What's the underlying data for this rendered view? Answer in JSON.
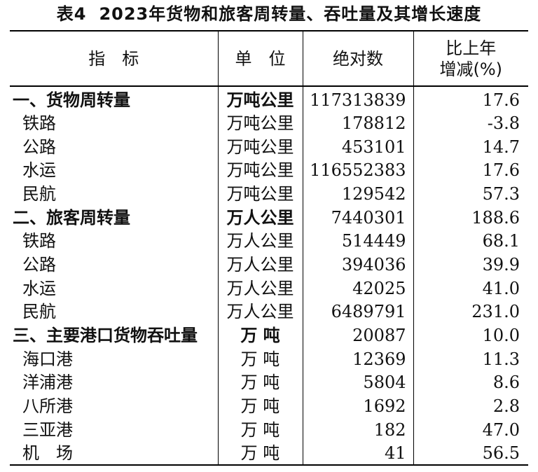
{
  "caption": {
    "label": "表4",
    "title": "2023年货物和旅客周转量、吞吐量及其增长速度"
  },
  "table": {
    "headers": {
      "indicator": "指　标",
      "unit": "单　位",
      "absolute": "绝对数",
      "growth_line1": "比上年",
      "growth_line2": "增减(%)"
    },
    "rows": [
      {
        "name": "一、货物周转量",
        "unit": "万吨公里",
        "value": "117313839",
        "growth": "17.6"
      },
      {
        "name": "铁路",
        "unit": "万吨公里",
        "value": "178812",
        "growth": "-3.8"
      },
      {
        "name": "公路",
        "unit": "万吨公里",
        "value": "453101",
        "growth": "14.7"
      },
      {
        "name": "水运",
        "unit": "万吨公里",
        "value": "116552383",
        "growth": "17.6"
      },
      {
        "name": "民航",
        "unit": "万吨公里",
        "value": "129542",
        "growth": "57.3"
      },
      {
        "name": "二、旅客周转量",
        "unit": "万人公里",
        "value": "7440301",
        "growth": "188.6"
      },
      {
        "name": "铁路",
        "unit": "万人公里",
        "value": "514449",
        "growth": "68.1"
      },
      {
        "name": "公路",
        "unit": "万人公里",
        "value": "394036",
        "growth": "39.9"
      },
      {
        "name": "水运",
        "unit": "万人公里",
        "value": "42025",
        "growth": "41.0"
      },
      {
        "name": "民航",
        "unit": "万人公里",
        "value": "6489791",
        "growth": "231.0"
      },
      {
        "name": "三、主要港口货物吞吐量",
        "unit": "万 吨",
        "value": "20087",
        "growth": "10.0"
      },
      {
        "name": "海口港",
        "unit": "万 吨",
        "value": "12369",
        "growth": "11.3"
      },
      {
        "name": "洋浦港",
        "unit": "万 吨",
        "value": "5804",
        "growth": "8.6"
      },
      {
        "name": "八所港",
        "unit": "万 吨",
        "value": "1692",
        "growth": "2.8"
      },
      {
        "name": "三亚港",
        "unit": "万 吨",
        "value": "182",
        "growth": "47.0"
      },
      {
        "name": "机　场",
        "unit": "万 吨",
        "value": "41",
        "growth": "56.5"
      }
    ]
  }
}
